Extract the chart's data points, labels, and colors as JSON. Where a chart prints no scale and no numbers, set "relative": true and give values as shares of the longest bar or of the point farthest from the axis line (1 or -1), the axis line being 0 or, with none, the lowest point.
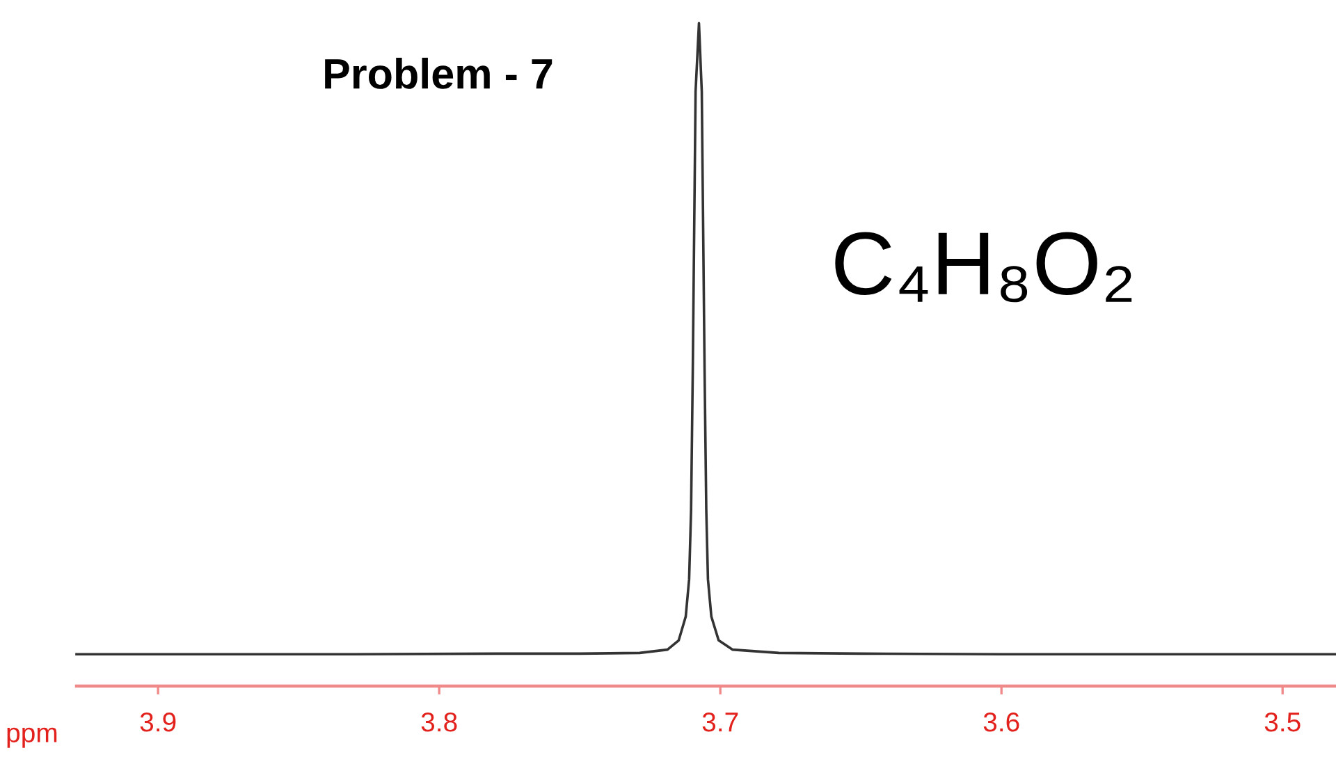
{
  "chart_data": {
    "type": "line",
    "title": "Problem - 7",
    "xlabel": "ppm",
    "annotations": [
      "C₄H₈O₂"
    ],
    "relative": true,
    "x": [
      3.929,
      3.88,
      3.83,
      3.78,
      3.75,
      3.7287,
      3.7188,
      3.7148,
      3.7123,
      3.7111,
      3.7104,
      3.7098,
      3.7093,
      3.7088,
      3.7076,
      3.7066,
      3.7061,
      3.7056,
      3.705,
      3.7044,
      3.7032,
      3.7006,
      3.6957,
      3.6792,
      3.65,
      3.6,
      3.55,
      3.5,
      3.481
    ],
    "series": [
      {
        "color": "#333333",
        "values": [
          0.048,
          0.048,
          0.048,
          0.049,
          0.049,
          0.05,
          0.055,
          0.069,
          0.105,
          0.161,
          0.266,
          0.476,
          0.687,
          0.897,
          1,
          0.897,
          0.687,
          0.476,
          0.266,
          0.161,
          0.105,
          0.069,
          0.055,
          0.05,
          0.049,
          0.048,
          0.048,
          0.048,
          0.048
        ]
      }
    ],
    "xlim": [
      3.929,
      3.481
    ],
    "xticks": [
      3.9,
      3.8,
      3.7,
      3.6,
      3.5
    ],
    "line_style": "solid"
  }
}
